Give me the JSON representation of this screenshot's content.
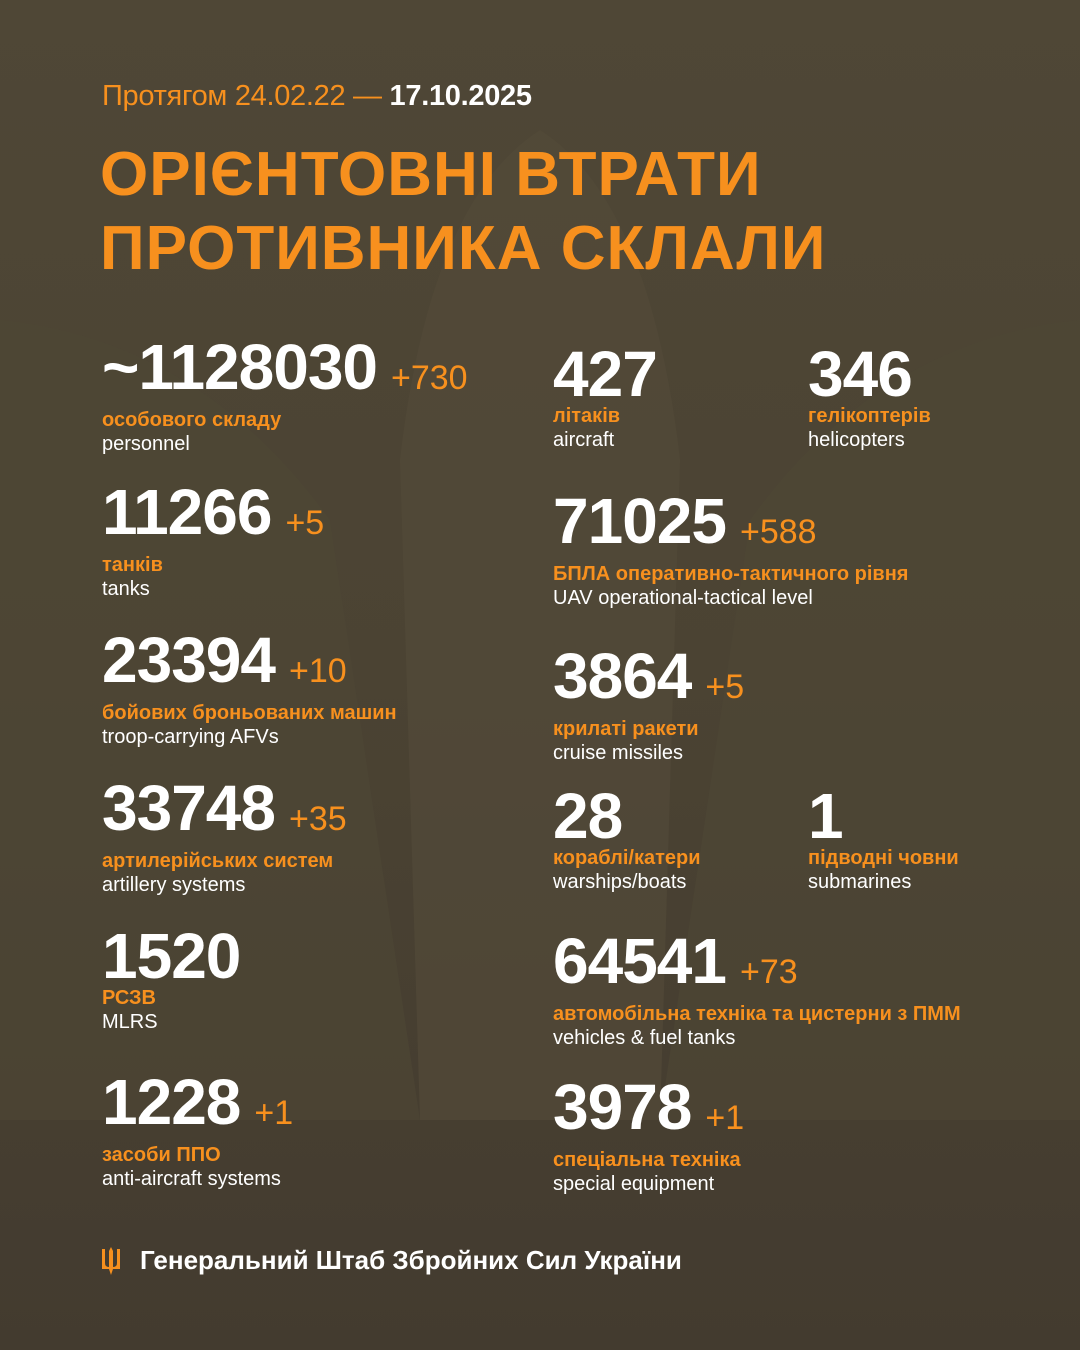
{
  "header": {
    "period_prefix": "Протягом 24.02.22 —",
    "period_date": "17.10.2025",
    "title_line1": "ОРІЄНТОВНІ ВТРАТИ",
    "title_line2": "ПРОТИВНИКА СКЛАЛИ"
  },
  "colors": {
    "accent": "#f7901e",
    "background": "#4b4333",
    "text": "#ffffff"
  },
  "stats": [
    {
      "value": "~1128030",
      "delta": "+730",
      "ua": "особового складу",
      "en": "personnel"
    },
    {
      "value": "11266",
      "delta": "+5",
      "ua": "танків",
      "en": "tanks"
    },
    {
      "value": "23394",
      "delta": "+10",
      "ua": "бойових броньованих машин",
      "en": "troop-carrying AFVs"
    },
    {
      "value": "33748",
      "delta": "+35",
      "ua": "артилерійських систем",
      "en": "artillery systems"
    },
    {
      "value": "1520",
      "delta": "",
      "ua": "РСЗВ",
      "en": "MLRS"
    },
    {
      "value": "1228",
      "delta": "+1",
      "ua": "засоби ППО",
      "en": "anti-aircraft systems"
    },
    {
      "value": "427",
      "delta": "",
      "ua": "літаків",
      "en": "aircraft"
    },
    {
      "value": "346",
      "delta": "",
      "ua": "гелікоптерів",
      "en": "helicopters"
    },
    {
      "value": "71025",
      "delta": "+588",
      "ua": "БПЛА оперативно-тактичного рівня",
      "en": "UAV operational-tactical level"
    },
    {
      "value": "3864",
      "delta": "+5",
      "ua": "крилаті ракети",
      "en": "cruise missiles"
    },
    {
      "value": "28",
      "delta": "",
      "ua": "кораблі/катери",
      "en": "warships/boats"
    },
    {
      "value": "1",
      "delta": "",
      "ua": "підводні човни",
      "en": "submarines"
    },
    {
      "value": "64541",
      "delta": "+73",
      "ua": "автомобільна техніка та цистерни з ПММ",
      "en": "vehicles & fuel tanks"
    },
    {
      "value": "3978",
      "delta": "+1",
      "ua": "спеціальна техніка",
      "en": "special equipment"
    }
  ],
  "footer": {
    "icon": "trident-icon",
    "text": "Генеральний Штаб Збройних Сил України"
  }
}
